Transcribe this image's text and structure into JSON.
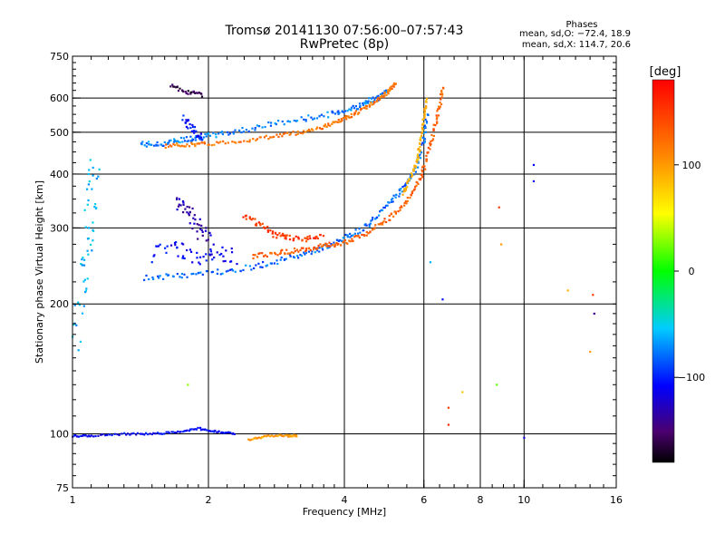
{
  "chart_data": {
    "type": "scatter",
    "title": "Tromsø 20141130 07:56:00–07:57:43",
    "subtitle": "RwPretec (8p)",
    "xlabel": "Frequency [MHz]",
    "ylabel": "Stationary phase Virtual Height [km]",
    "x_scale": "log",
    "y_scale": "log",
    "xlim": [
      1,
      16
    ],
    "ylim": [
      75,
      750
    ],
    "x_ticks": [
      "1",
      "2",
      "4",
      "6",
      "8",
      "10",
      "16"
    ],
    "x_tick_values": [
      1,
      2,
      4,
      6,
      8,
      10,
      16
    ],
    "y_ticks": [
      "75",
      "100",
      "200",
      "300",
      "400",
      "500",
      "600",
      "750"
    ],
    "y_tick_values": [
      75,
      100,
      200,
      300,
      400,
      500,
      600,
      750
    ],
    "x_grid": [
      2,
      4,
      6,
      8,
      10
    ],
    "y_grid": [
      100,
      200,
      300,
      400,
      500,
      600
    ],
    "phase_box": {
      "title": "Phases",
      "line_o": "mean, sd,O: −72.4, 18.9",
      "line_x": "mean, sd,X: 114.7, 20.6"
    },
    "colorbar": {
      "unit": "[deg]",
      "range": [
        -180,
        180
      ],
      "ticks": [
        "100",
        "0",
        "−100"
      ],
      "tick_values": [
        100,
        0,
        -100
      ]
    },
    "traces": [
      {
        "x": [
          1.42,
          1.55,
          1.7,
          1.85,
          2.0,
          2.3,
          2.7,
          3.2,
          3.7,
          4.1,
          4.4,
          4.7,
          5.0
        ],
        "y": [
          470,
          468,
          478,
          485,
          490,
          502,
          520,
          535,
          550,
          565,
          580,
          600,
          625
        ],
        "phase": -75,
        "jitter": 0.03
      },
      {
        "x": [
          1.6,
          1.8,
          2.0,
          2.4,
          2.8,
          3.2,
          3.6,
          3.9,
          4.1,
          4.4,
          4.7,
          5.0,
          5.2
        ],
        "y": [
          465,
          468,
          470,
          478,
          490,
          500,
          515,
          530,
          545,
          565,
          590,
          620,
          650
        ],
        "phase": 120,
        "jitter": 0.02
      },
      {
        "x": [
          1.45,
          1.7,
          2.0,
          2.4,
          2.8,
          3.2,
          3.6,
          4.0,
          4.4,
          4.8,
          5.2,
          5.5,
          5.8,
          6.0,
          6.1
        ],
        "y": [
          230,
          232,
          236,
          242,
          250,
          260,
          270,
          284,
          300,
          325,
          355,
          380,
          420,
          480,
          560
        ],
        "phase": -80,
        "jitter": 0.03
      },
      {
        "x": [
          2.5,
          2.8,
          3.1,
          3.4,
          3.7,
          4.0,
          4.4,
          4.8,
          5.2,
          5.6,
          5.9,
          6.1,
          6.3,
          6.5,
          6.6
        ],
        "y": [
          258,
          262,
          266,
          270,
          274,
          278,
          288,
          305,
          325,
          355,
          390,
          440,
          500,
          570,
          640
        ],
        "phase": 130,
        "jitter": 0.025
      },
      {
        "x": [
          2.4,
          2.6,
          2.8,
          3.0,
          3.3,
          3.6
        ],
        "y": [
          320,
          305,
          290,
          285,
          283,
          290
        ],
        "phase": 150,
        "jitter": 0.03
      },
      {
        "x": [
          5.4,
          5.6,
          5.8,
          5.9,
          6.0,
          6.1
        ],
        "y": [
          360,
          390,
          430,
          480,
          540,
          600
        ],
        "phase": 90,
        "jitter": 0.02
      },
      {
        "x": [
          1.5,
          1.7,
          1.9,
          2.1,
          2.3
        ],
        "y": [
          260,
          270,
          255,
          265,
          250
        ],
        "phase": -110,
        "jitter": 0.1
      },
      {
        "x": [
          1.7,
          1.8,
          1.9,
          2.0
        ],
        "y": [
          350,
          330,
          300,
          280
        ],
        "phase": -130,
        "jitter": 0.08
      },
      {
        "x": [
          1.65,
          1.8,
          1.95
        ],
        "y": [
          640,
          620,
          610
        ],
        "phase": -160,
        "jitter": 0.02
      },
      {
        "x": [
          1.75,
          1.85,
          1.95
        ],
        "y": [
          540,
          510,
          480
        ],
        "phase": -105,
        "jitter": 0.05
      },
      {
        "x": [
          1.02,
          1.05,
          1.08,
          1.1,
          1.12
        ],
        "y": [
          160,
          220,
          280,
          350,
          420
        ],
        "phase": -60,
        "jitter": 0.12
      },
      {
        "x": [
          1.0,
          1.1,
          1.3,
          1.5,
          1.7,
          1.9,
          2.1,
          2.3
        ],
        "y": [
          99,
          99,
          100,
          100,
          101,
          103,
          101,
          100
        ],
        "phase": -110,
        "jitter": 0.01
      },
      {
        "x": [
          2.45,
          2.7,
          3.0,
          3.15
        ],
        "y": [
          97,
          99,
          99,
          99
        ],
        "phase": 100,
        "jitter": 0.01
      }
    ],
    "points": [
      {
        "x": 10.5,
        "y": 420,
        "phase": -110
      },
      {
        "x": 10.5,
        "y": 385,
        "phase": -115
      },
      {
        "x": 8.8,
        "y": 335,
        "phase": 150
      },
      {
        "x": 8.9,
        "y": 275,
        "phase": 100
      },
      {
        "x": 6.6,
        "y": 205,
        "phase": -105
      },
      {
        "x": 6.8,
        "y": 115,
        "phase": 150
      },
      {
        "x": 7.3,
        "y": 125,
        "phase": 80
      },
      {
        "x": 8.7,
        "y": 130,
        "phase": 20
      },
      {
        "x": 1.8,
        "y": 130,
        "phase": 30
      },
      {
        "x": 10.0,
        "y": 98,
        "phase": -120
      },
      {
        "x": 6.8,
        "y": 105,
        "phase": 160
      },
      {
        "x": 14.2,
        "y": 210,
        "phase": 150
      },
      {
        "x": 14.3,
        "y": 190,
        "phase": -140
      },
      {
        "x": 14.0,
        "y": 155,
        "phase": 100
      },
      {
        "x": 12.5,
        "y": 215,
        "phase": 90
      },
      {
        "x": 6.2,
        "y": 250,
        "phase": -60
      }
    ]
  }
}
